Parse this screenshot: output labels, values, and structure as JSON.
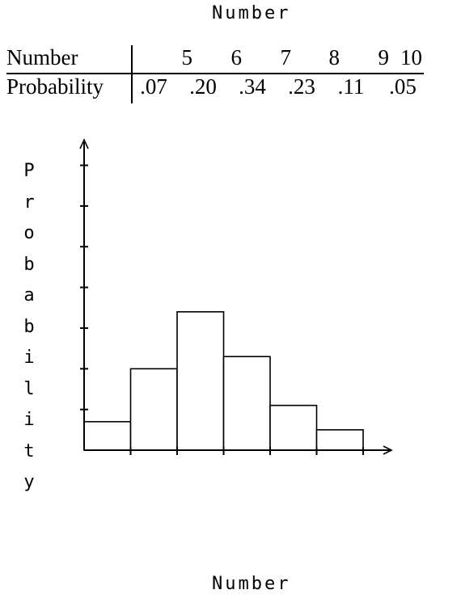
{
  "top_title": "Number",
  "bottom_title": "Number",
  "table": {
    "row_headers": [
      "Number",
      "Probability"
    ],
    "numbers": [
      "5",
      "6",
      "7",
      "8",
      "9",
      "10"
    ],
    "probabilities": [
      ".07",
      ".20",
      ".34",
      ".23",
      ".11",
      ".05"
    ]
  },
  "y_label": "Probability",
  "chart_data": {
    "type": "bar",
    "categories": [
      "5",
      "6",
      "7",
      "8",
      "9",
      "10"
    ],
    "values": [
      0.07,
      0.2,
      0.34,
      0.23,
      0.11,
      0.05
    ],
    "title": "",
    "xlabel": "Number",
    "ylabel": "Probability",
    "ylim": [
      0,
      0.35
    ],
    "grid": false
  }
}
